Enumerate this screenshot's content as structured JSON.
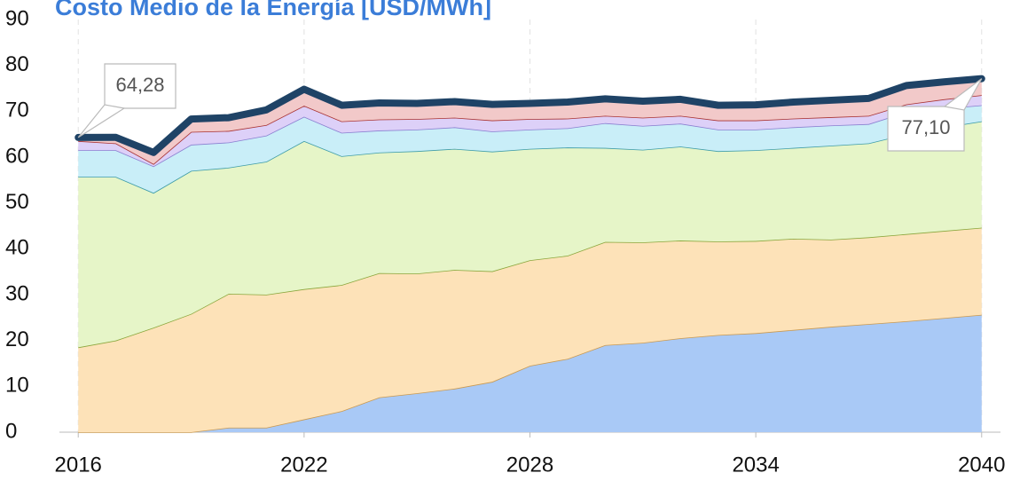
{
  "chart_data": {
    "type": "stacked_area",
    "title": "Costo Medio de la Energía [USD/MWh]",
    "x": [
      2016,
      2017,
      2018,
      2019,
      2020,
      2021,
      2022,
      2023,
      2024,
      2025,
      2026,
      2027,
      2028,
      2029,
      2030,
      2031,
      2032,
      2033,
      2034,
      2035,
      2036,
      2037,
      2038,
      2039,
      2040
    ],
    "series": [
      {
        "color": "#a9c9f6",
        "values": [
          0,
          0,
          0,
          0,
          1,
          1,
          2.8,
          4.6,
          7.6,
          8.5,
          9.5,
          11,
          14.5,
          16,
          19,
          19.5,
          20.5,
          21.2,
          21.6,
          22.3,
          23,
          23.6,
          24.2,
          24.9,
          25.6
        ]
      },
      {
        "color": "#fde2b8",
        "values": [
          18.5,
          20,
          22.8,
          25.8,
          29.2,
          29,
          28.4,
          27.5,
          27.1,
          26.1,
          25.9,
          24.1,
          23,
          22.5,
          22.5,
          21.9,
          21.3,
          20.4,
          20.1,
          19.9,
          19,
          18.9,
          19,
          19,
          19
        ]
      },
      {
        "color": "#e6f5c8",
        "values": [
          37.2,
          35.7,
          29.4,
          31.2,
          27.5,
          29,
          32.3,
          28.1,
          26.3,
          26.7,
          26.4,
          26.1,
          24.3,
          23.6,
          20.5,
          20.2,
          20.5,
          19.7,
          19.8,
          19.8,
          20.5,
          20.5,
          21.8,
          22.6,
          23.2
        ]
      },
      {
        "color": "#c9eef8",
        "values": [
          5.8,
          5.8,
          5.8,
          5.7,
          5.5,
          5.7,
          5.3,
          5.1,
          4.8,
          4.7,
          4.7,
          4.4,
          4.2,
          4.2,
          5.4,
          5.2,
          5,
          4.7,
          4.5,
          4.5,
          4.4,
          4.2,
          4.8,
          4.1,
          3.5
        ]
      },
      {
        "color": "#ddd0f8",
        "values": [
          2,
          1.5,
          0.5,
          2.8,
          2.5,
          2.3,
          2.4,
          2.5,
          2.4,
          2.3,
          2.1,
          2.4,
          2.3,
          2.1,
          1.6,
          1.8,
          1.7,
          2,
          2,
          1.9,
          1.8,
          1.8,
          1.7,
          2,
          2.2
        ]
      },
      {
        "color": "#f2c9c9",
        "values": [
          0.78,
          1.3,
          2.5,
          2.8,
          2.9,
          3.3,
          3.6,
          3.5,
          3.6,
          3.4,
          3.5,
          3.5,
          3.4,
          3.6,
          3.7,
          3.6,
          3.6,
          3.3,
          3.4,
          3.6,
          3.7,
          3.8,
          4.1,
          3.8,
          3.6
        ]
      }
    ],
    "annotations": [
      "64,28",
      "77,10"
    ],
    "xlim": [
      2015.5,
      2040.5
    ],
    "xticks": [
      2016,
      2022,
      2028,
      2034,
      2040
    ],
    "ylim": [
      0,
      90
    ],
    "yticks": [
      0,
      10,
      20,
      30,
      40,
      50,
      60,
      70,
      80,
      90
    ],
    "grid": true
  }
}
